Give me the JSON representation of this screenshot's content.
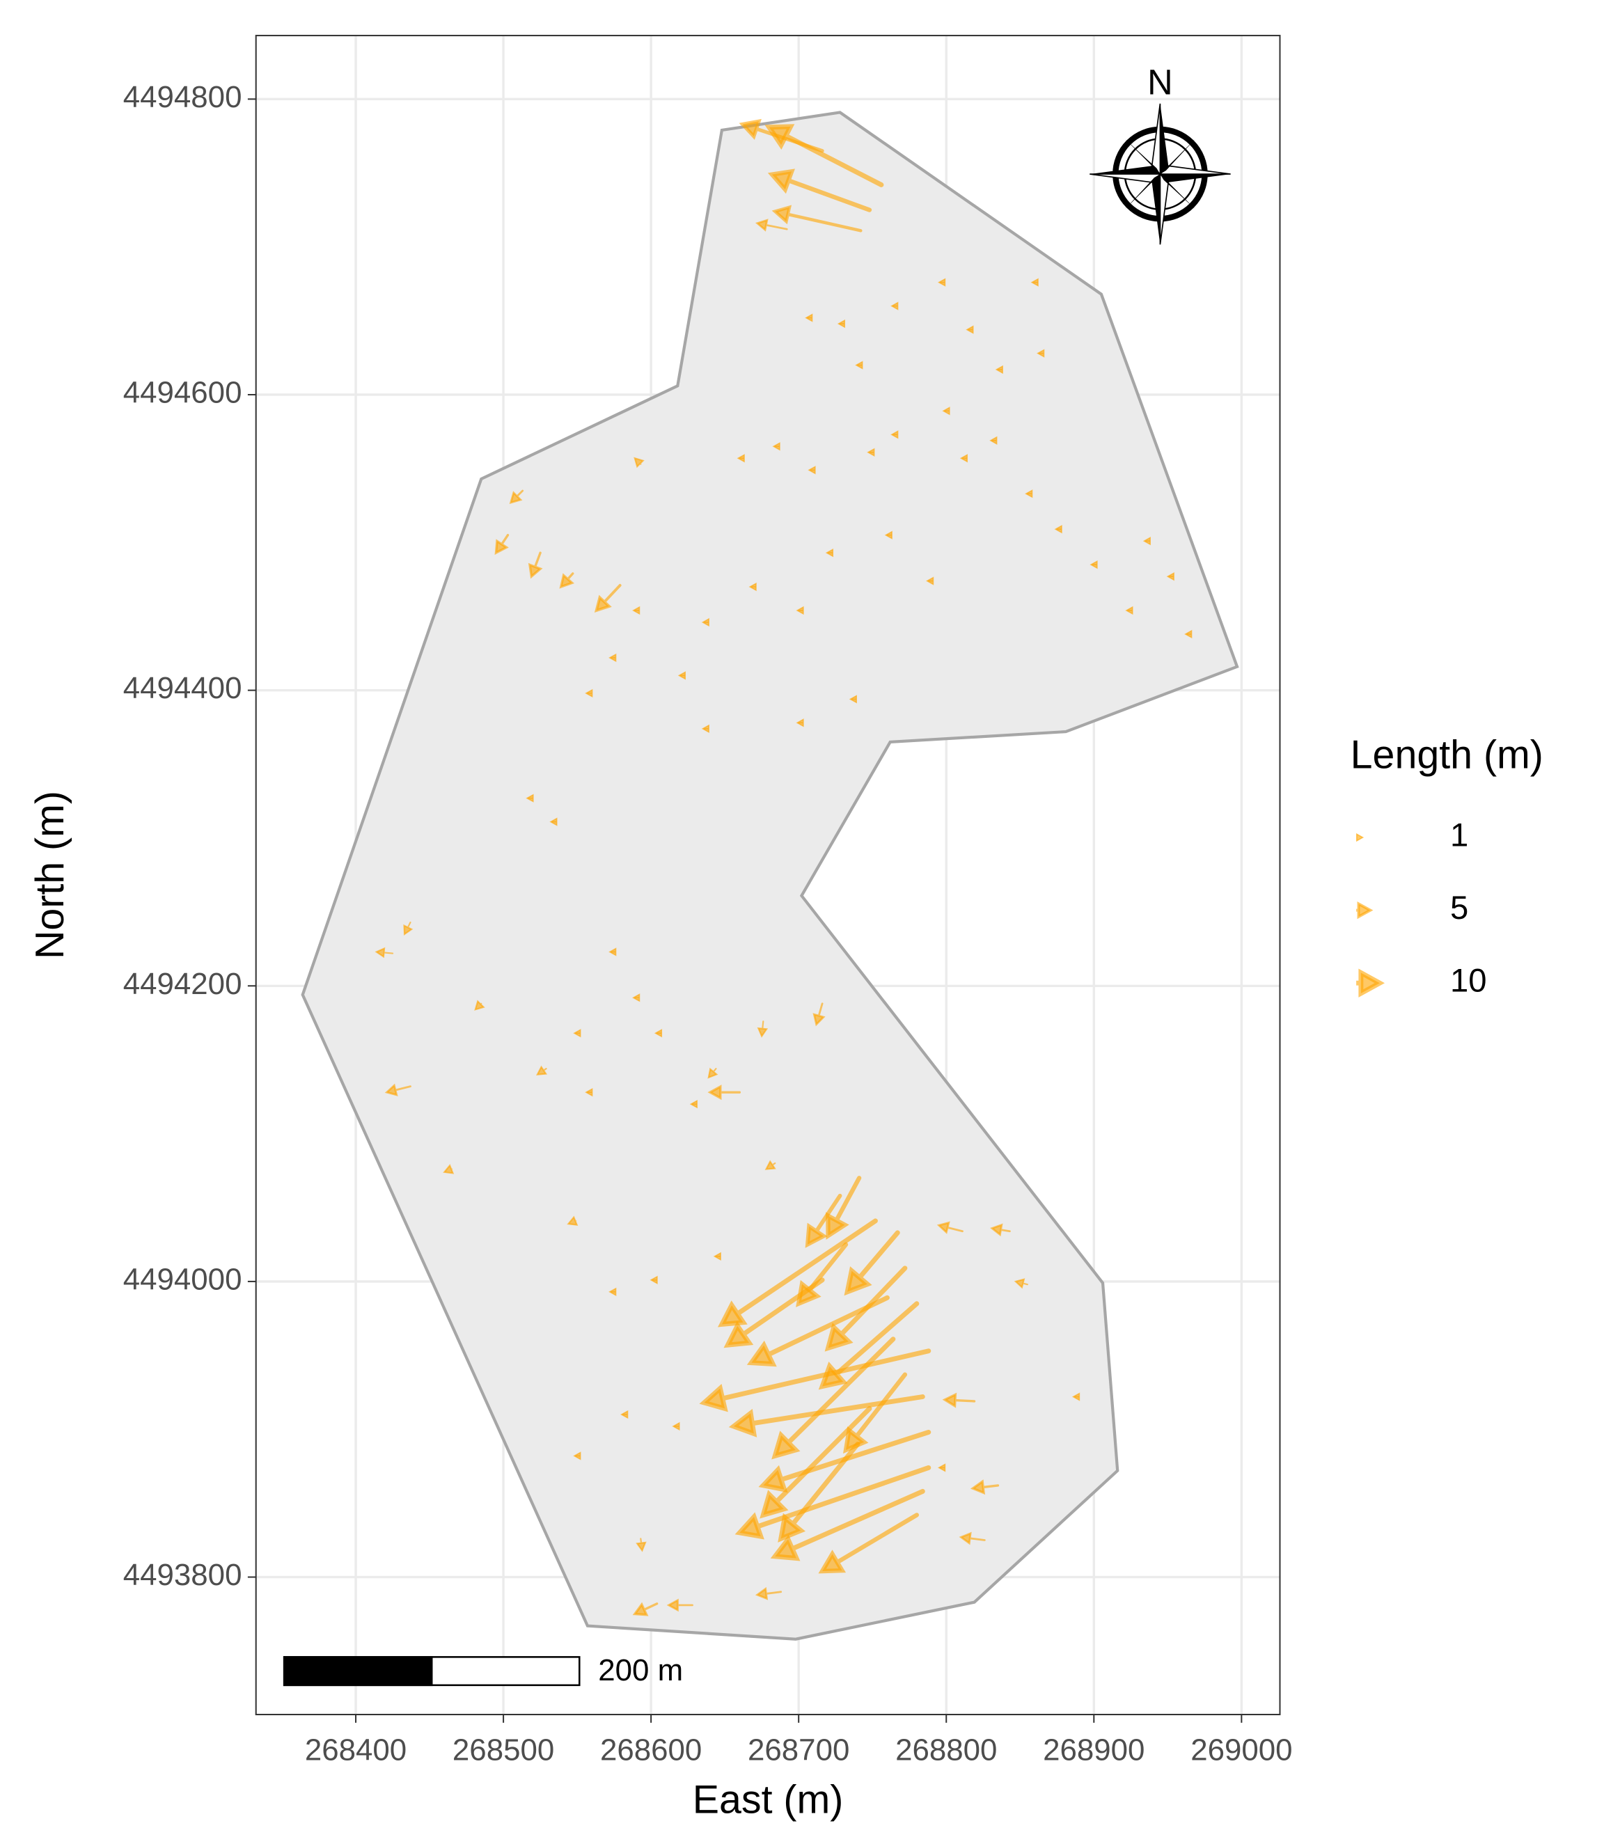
{
  "chart_data": {
    "type": "vector",
    "x_label": "East (m)",
    "y_label": "North (m)",
    "xlim": [
      268332.4,
      269026
    ],
    "ylim": [
      4493707,
      4494843
    ],
    "xticks": [
      268400,
      268500,
      268600,
      268700,
      268800,
      268900,
      269000
    ],
    "yticks": [
      4493800,
      4494000,
      4494200,
      4494400,
      4494600,
      4494800
    ],
    "grid": true,
    "color": "#ffa500",
    "boundary": {
      "fill": "#ebebeb",
      "color": "#a6a6a6",
      "x": [
        268648,
        268728,
        268905,
        268997,
        268881,
        268762,
        268702,
        268906,
        268916,
        268819,
        268698,
        268557,
        268364,
        268485,
        268618
      ],
      "y": [
        4494779,
        4494791,
        4494668,
        4494416,
        4494372,
        4494365,
        4494261,
        4493999,
        4493872,
        4493783,
        4493758,
        4493767,
        4494194,
        4494543,
        4494606
      ]
    },
    "segments": {
      "x": [
        268756,
        268748,
        268742,
        268716,
        268692,
        268741,
        268767,
        268780,
        268788,
        268784,
        268788,
        268788,
        268784,
        268780,
        268772,
        268752,
        268764,
        268716,
        268772,
        268728,
        268760,
        268748,
        268740,
        268732,
        268811,
        268843,
        268855,
        268819,
        268835,
        268826,
        268604,
        268628,
        268688,
        268644,
        268660,
        268716,
        268676,
        268684,
        268437,
        268425,
        268465,
        268513,
        268579,
        268547,
        268503,
        268593,
        268525,
        268437,
        268485,
        268529,
        268549,
        268593,
        268706,
        268728,
        268740,
        268764,
        268796,
        268815,
        268835,
        268859,
        268863,
        268660,
        268684,
        268708,
        268748,
        268764,
        268799,
        268811,
        268831,
        268855,
        268875,
        268899,
        268935,
        268951,
        268923,
        268963,
        268668,
        268700,
        268720,
        268760,
        268788,
        268636,
        268589,
        268573,
        268557,
        268620,
        268636,
        268700,
        268736,
        268573,
        268589,
        268604,
        268628,
        268533,
        268517,
        268549,
        268557,
        268573,
        268549,
        268581,
        268616,
        268887,
        268796,
        268601,
        268644
      ],
      "y": [
        4494742,
        4494725,
        4494711,
        4494765,
        4494712,
        4494070,
        4494033,
        4493985,
        4493953,
        4493922,
        4493898,
        4493874,
        4493858,
        4493842,
        4494009,
        4494041,
        4493961,
        4494001,
        4493937,
        4494058,
        4493989,
        4493914,
        4493890,
        4494025,
        4494034,
        4494034,
        4493998,
        4493919,
        4493862,
        4493825,
        4493782,
        4493781,
        4493790,
        4494144,
        4494128,
        4494188,
        4494176,
        4494080,
        4494243,
        4494222,
        4494076,
        4494535,
        4494471,
        4494479,
        4494505,
        4494553,
        4494493,
        4494132,
        4494188,
        4494144,
        4494041,
        4493826,
        4494652,
        4494648,
        4494620,
        4494660,
        4494676,
        4494644,
        4494617,
        4494676,
        4494628,
        4494557,
        4494565,
        4494549,
        4494561,
        4494573,
        4494589,
        4494557,
        4494569,
        4494533,
        4494509,
        4494485,
        4494501,
        4494477,
        4494454,
        4494438,
        4494470,
        4494454,
        4494493,
        4494505,
        4494474,
        4494446,
        4494454,
        4494422,
        4494398,
        4494410,
        4494374,
        4494378,
        4494394,
        4494223,
        4494192,
        4494168,
        4494120,
        4494311,
        4494327,
        4494168,
        4494128,
        4493993,
        4493882,
        4493910,
        4493902,
        4493922,
        4493874,
        4494001,
        4494017
      ],
      "xend": [
        268680,
        268682,
        268684,
        268662,
        268672,
        268720,
        268733,
        268716,
        268636,
        268656,
        268676,
        268660,
        268684,
        268716,
        268720,
        268648,
        268684,
        268652,
        268732,
        268706,
        268668,
        268676,
        268688,
        268700,
        268795,
        268831,
        268847,
        268799,
        268818,
        268810,
        268589,
        268612,
        268672,
        268639,
        268640,
        268712,
        268675,
        268678,
        268433,
        268414,
        268460,
        268505,
        268563,
        268539,
        268495,
        268589,
        268519,
        268421,
        268481,
        268523,
        268544,
        268594,
        268705,
        268727,
        268739,
        268763,
        268795,
        268814,
        268834,
        268858,
        268862,
        268659,
        268683,
        268707,
        268747,
        268763,
        268798,
        268810,
        268830,
        268854,
        268874,
        268898,
        268934,
        268950,
        268922,
        268962,
        268667,
        268699,
        268719,
        268759,
        268787,
        268635,
        268588,
        268572,
        268556,
        268619,
        268635,
        268699,
        268735,
        268572,
        268588,
        268603,
        268627,
        268532,
        268516,
        268548,
        268556,
        268572,
        268548,
        268580,
        268615,
        268886,
        268795,
        268600,
        268643
      ],
      "yend": [
        4494781,
        4494749,
        4494724,
        4494783,
        4494716,
        4494031,
        4493993,
        4493929,
        4493918,
        4493902,
        4493862,
        4493830,
        4493814,
        4493804,
        4493955,
        4493971,
        4493882,
        4493957,
        4493886,
        4494025,
        4493945,
        4493842,
        4493826,
        4493985,
        4494038,
        4494036,
        4494000,
        4493920,
        4493860,
        4493827,
        4493775,
        4493781,
        4493788,
        4494138,
        4494128,
        4494174,
        4494166,
        4494076,
        4494235,
        4494223,
        4494074,
        4494527,
        4494454,
        4494470,
        4494493,
        4494557,
        4494477,
        4494128,
        4494184,
        4494140,
        4494039,
        4493818,
        4494652,
        4494648,
        4494620,
        4494660,
        4494676,
        4494644,
        4494617,
        4494676,
        4494628,
        4494557,
        4494565,
        4494549,
        4494561,
        4494573,
        4494589,
        4494557,
        4494569,
        4494533,
        4494509,
        4494485,
        4494501,
        4494477,
        4494454,
        4494438,
        4494470,
        4494454,
        4494493,
        4494505,
        4494474,
        4494446,
        4494454,
        4494422,
        4494398,
        4494410,
        4494374,
        4494378,
        4494394,
        4494223,
        4494192,
        4494168,
        4494120,
        4494311,
        4494327,
        4494168,
        4494128,
        4493993,
        4493882,
        4493910,
        4493902,
        4493922,
        4493874,
        4494001,
        4494017
      ],
      "length": [
        10,
        9,
        6,
        7,
        3,
        9,
        10,
        10,
        10,
        10,
        10,
        10,
        10,
        9,
        10,
        10,
        10,
        10,
        9,
        8,
        10,
        10,
        10,
        9,
        3,
        3,
        2,
        4,
        4,
        3,
        4,
        3,
        3,
        2,
        4,
        3,
        2,
        2,
        2,
        2,
        2,
        3,
        5,
        4,
        4,
        2,
        4,
        3,
        2,
        2,
        2,
        2,
        1,
        1,
        1,
        1,
        1,
        1,
        1,
        1,
        1,
        1,
        1,
        1,
        1,
        1,
        1,
        1,
        1,
        1,
        1,
        1,
        1,
        1,
        1,
        1,
        1,
        1,
        1,
        1,
        1,
        1,
        1,
        1,
        1,
        1,
        1,
        1,
        1,
        1,
        1,
        1,
        1,
        1,
        1,
        1,
        1,
        1,
        1,
        1,
        1,
        1,
        1,
        1,
        1
      ]
    },
    "legend": {
      "title": "Length (m)",
      "values": [
        1,
        5,
        10
      ]
    },
    "scalebar": {
      "value": 200,
      "label": "200 m"
    },
    "north_label": "N"
  }
}
